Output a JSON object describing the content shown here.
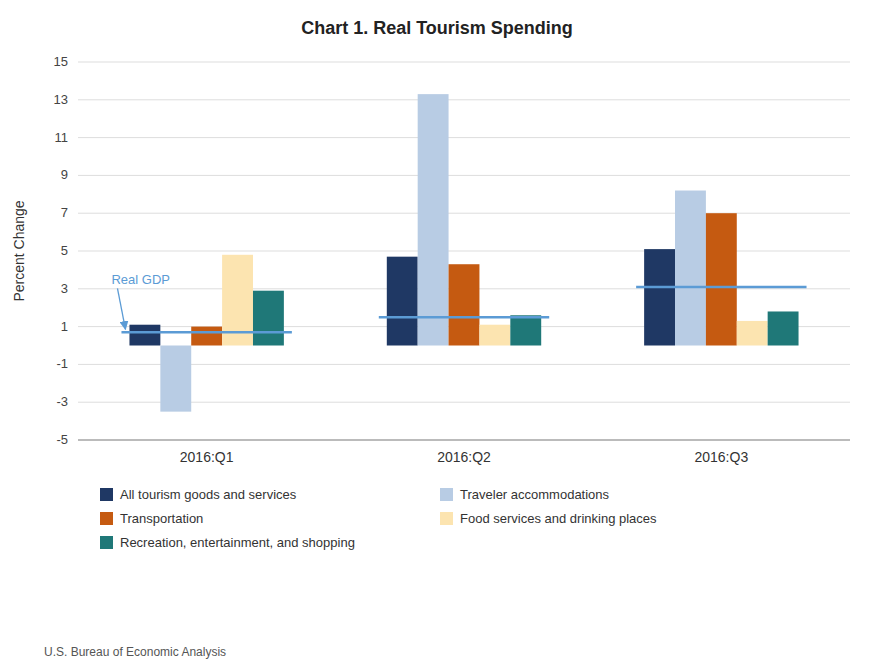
{
  "chart_data": {
    "type": "bar",
    "title": "Chart 1.  Real Tourism Spending",
    "y_label": "Percent Change",
    "source": "U.S. Bureau of Economic Analysis",
    "categories": [
      "2016:Q1",
      "2016:Q2",
      "2016:Q3"
    ],
    "series": [
      {
        "name": "All tourism goods and services",
        "color": "#1f3864",
        "values": [
          1.1,
          4.7,
          5.1
        ]
      },
      {
        "name": "Traveler accommodations",
        "color": "#b8cce4",
        "values": [
          -3.5,
          13.3,
          8.2
        ]
      },
      {
        "name": "Transportation",
        "color": "#c55a11",
        "values": [
          1.0,
          4.3,
          7.0
        ]
      },
      {
        "name": "Food services and drinking places",
        "color": "#fce4b0",
        "values": [
          4.8,
          1.1,
          1.3
        ]
      },
      {
        "name": "Recreation, entertainment, and shopping",
        "color": "#1f7878",
        "values": [
          2.9,
          1.6,
          1.8
        ]
      },
      {
        "name": "Real GDP",
        "type": "line",
        "color": "#5b9bd5",
        "values": [
          0.7,
          1.5,
          3.1
        ]
      }
    ],
    "ylim": [
      -5,
      15
    ],
    "yticks": [
      -5,
      -3,
      -1,
      1,
      3,
      5,
      7,
      9,
      11,
      13,
      15
    ],
    "grid": true,
    "legend": "bottom"
  }
}
